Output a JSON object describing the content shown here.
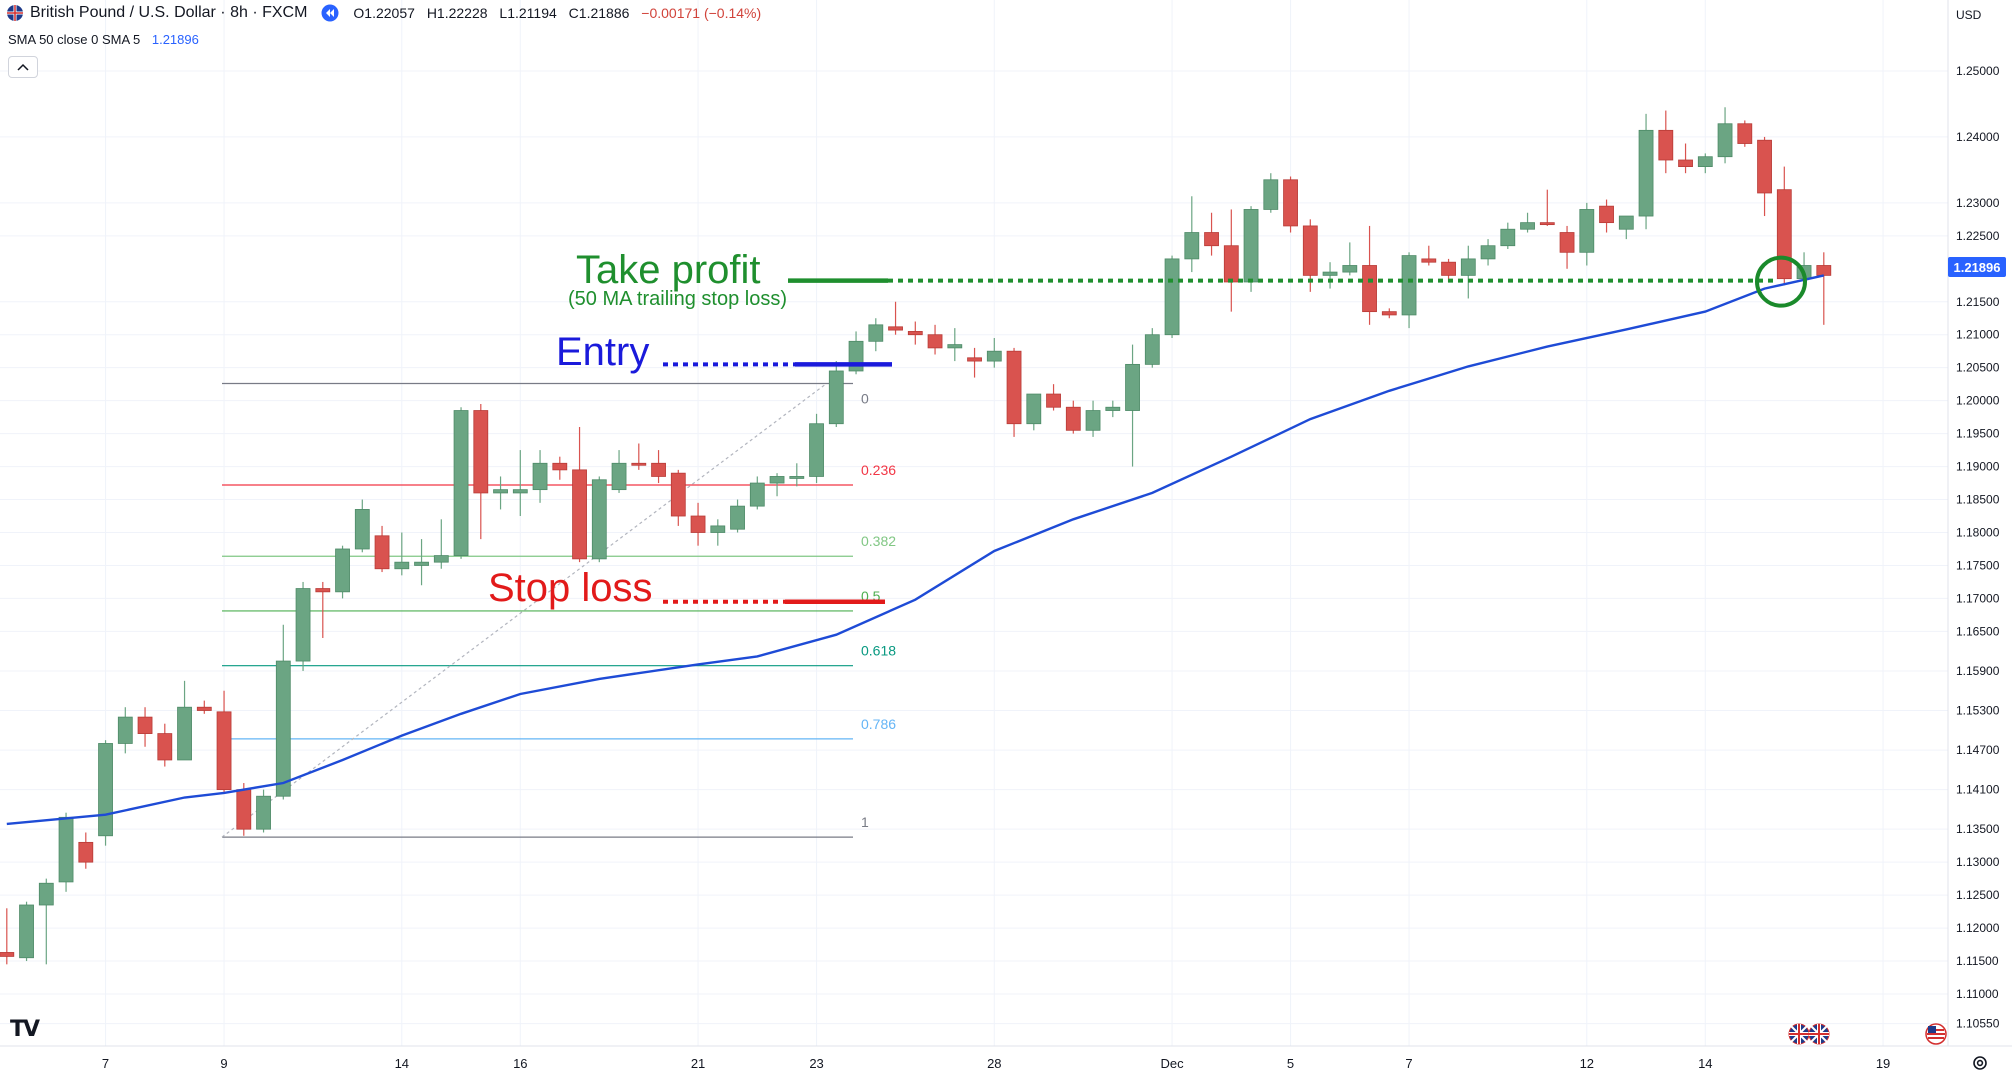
{
  "header": {
    "symbol_title": "British Pound / U.S. Dollar · 8h · FXCM",
    "open": "O1.22057",
    "high": "H1.22228",
    "low": "L1.21194",
    "close": "C1.21886",
    "change": "−0.00171 (−0.14%)",
    "indicator_label": "SMA 50 close 0 SMA 5",
    "indicator_value": "1.21896",
    "currency": "USD",
    "collapse_icon": "chevron-up-icon",
    "logo": "TV"
  },
  "annotations": {
    "take_profit": "Take profit",
    "take_profit_sub": "(50 MA trailing stop loss)",
    "entry": "Entry",
    "stop_loss": "Stop loss"
  },
  "colors": {
    "up": "#6ba583",
    "down": "#d9534f",
    "sma": "#1e4bd6",
    "take_profit": "#1f8f2e",
    "entry": "#1a1adb",
    "stop_loss": "#e21a1a",
    "price_tag": "#2962ff"
  },
  "chart_data": {
    "type": "candlestick",
    "y_axis": {
      "ticks": [
        "1.25000",
        "1.24000",
        "1.23000",
        "1.22500",
        "1.21500",
        "1.21000",
        "1.20500",
        "1.20000",
        "1.19500",
        "1.19000",
        "1.18500",
        "1.18000",
        "1.17500",
        "1.17000",
        "1.16500",
        "1.15900",
        "1.15300",
        "1.14700",
        "1.14100",
        "1.13500",
        "1.13000",
        "1.12500",
        "1.12000",
        "1.11500",
        "1.11000",
        "1.10550"
      ],
      "last_price": "1.21896"
    },
    "x_axis": {
      "ticks": [
        {
          "label": "7",
          "index": 5
        },
        {
          "label": "9",
          "index": 11
        },
        {
          "label": "14",
          "index": 20
        },
        {
          "label": "16",
          "index": 26
        },
        {
          "label": "21",
          "index": 35
        },
        {
          "label": "23",
          "index": 41
        },
        {
          "label": "28",
          "index": 50
        },
        {
          "label": "Dec",
          "index": 59
        },
        {
          "label": "5",
          "index": 65
        },
        {
          "label": "7",
          "index": 71
        },
        {
          "label": "12",
          "index": 80
        },
        {
          "label": "14",
          "index": 86
        },
        {
          "label": "19",
          "index": 95
        }
      ]
    },
    "candles": [
      {
        "o": 1.1163,
        "h": 1.123,
        "l": 1.1145,
        "c": 1.1157
      },
      {
        "o": 1.1155,
        "h": 1.124,
        "l": 1.115,
        "c": 1.1235
      },
      {
        "o": 1.1235,
        "h": 1.1275,
        "l": 1.1145,
        "c": 1.1268
      },
      {
        "o": 1.127,
        "h": 1.1375,
        "l": 1.1255,
        "c": 1.1368
      },
      {
        "o": 1.133,
        "h": 1.1345,
        "l": 1.129,
        "c": 1.13
      },
      {
        "o": 1.134,
        "h": 1.1485,
        "l": 1.1325,
        "c": 1.148
      },
      {
        "o": 1.148,
        "h": 1.1535,
        "l": 1.1465,
        "c": 1.152
      },
      {
        "o": 1.152,
        "h": 1.1535,
        "l": 1.1475,
        "c": 1.1495
      },
      {
        "o": 1.1495,
        "h": 1.151,
        "l": 1.1445,
        "c": 1.1455
      },
      {
        "o": 1.1455,
        "h": 1.1575,
        "l": 1.1455,
        "c": 1.1535
      },
      {
        "o": 1.1535,
        "h": 1.1545,
        "l": 1.1525,
        "c": 1.153
      },
      {
        "o": 1.1528,
        "h": 1.156,
        "l": 1.1405,
        "c": 1.141
      },
      {
        "o": 1.141,
        "h": 1.142,
        "l": 1.134,
        "c": 1.135
      },
      {
        "o": 1.135,
        "h": 1.141,
        "l": 1.1345,
        "c": 1.14
      },
      {
        "o": 1.14,
        "h": 1.166,
        "l": 1.1395,
        "c": 1.1605
      },
      {
        "o": 1.1605,
        "h": 1.1725,
        "l": 1.159,
        "c": 1.1715
      },
      {
        "o": 1.1715,
        "h": 1.1725,
        "l": 1.164,
        "c": 1.171
      },
      {
        "o": 1.171,
        "h": 1.178,
        "l": 1.17,
        "c": 1.1775
      },
      {
        "o": 1.1775,
        "h": 1.185,
        "l": 1.177,
        "c": 1.1835
      },
      {
        "o": 1.1795,
        "h": 1.181,
        "l": 1.174,
        "c": 1.1745
      },
      {
        "o": 1.1745,
        "h": 1.18,
        "l": 1.1735,
        "c": 1.1755
      },
      {
        "o": 1.175,
        "h": 1.179,
        "l": 1.172,
        "c": 1.1755
      },
      {
        "o": 1.1755,
        "h": 1.182,
        "l": 1.1745,
        "c": 1.1765
      },
      {
        "o": 1.1765,
        "h": 1.199,
        "l": 1.176,
        "c": 1.1985
      },
      {
        "o": 1.1985,
        "h": 1.1995,
        "l": 1.179,
        "c": 1.186
      },
      {
        "o": 1.186,
        "h": 1.1885,
        "l": 1.1835,
        "c": 1.1865
      },
      {
        "o": 1.186,
        "h": 1.1925,
        "l": 1.1825,
        "c": 1.1865
      },
      {
        "o": 1.1865,
        "h": 1.1925,
        "l": 1.1845,
        "c": 1.1905
      },
      {
        "o": 1.1905,
        "h": 1.1915,
        "l": 1.188,
        "c": 1.1895
      },
      {
        "o": 1.1895,
        "h": 1.196,
        "l": 1.1755,
        "c": 1.176
      },
      {
        "o": 1.176,
        "h": 1.1885,
        "l": 1.1755,
        "c": 1.188
      },
      {
        "o": 1.1865,
        "h": 1.1925,
        "l": 1.186,
        "c": 1.1905
      },
      {
        "o": 1.1905,
        "h": 1.1935,
        "l": 1.1895,
        "c": 1.1902
      },
      {
        "o": 1.1905,
        "h": 1.1925,
        "l": 1.1875,
        "c": 1.1885
      },
      {
        "o": 1.189,
        "h": 1.1895,
        "l": 1.181,
        "c": 1.1825
      },
      {
        "o": 1.1825,
        "h": 1.1845,
        "l": 1.178,
        "c": 1.18
      },
      {
        "o": 1.18,
        "h": 1.182,
        "l": 1.178,
        "c": 1.181
      },
      {
        "o": 1.1805,
        "h": 1.185,
        "l": 1.18,
        "c": 1.184
      },
      {
        "o": 1.184,
        "h": 1.1885,
        "l": 1.1835,
        "c": 1.1875
      },
      {
        "o": 1.1875,
        "h": 1.189,
        "l": 1.1855,
        "c": 1.1885
      },
      {
        "o": 1.1882,
        "h": 1.1905,
        "l": 1.187,
        "c": 1.1885
      },
      {
        "o": 1.1885,
        "h": 1.198,
        "l": 1.1875,
        "c": 1.1965
      },
      {
        "o": 1.1965,
        "h": 1.206,
        "l": 1.196,
        "c": 1.2045
      },
      {
        "o": 1.2045,
        "h": 1.2105,
        "l": 1.204,
        "c": 1.209
      },
      {
        "o": 1.209,
        "h": 1.2125,
        "l": 1.2075,
        "c": 1.2115
      },
      {
        "o": 1.2112,
        "h": 1.215,
        "l": 1.21,
        "c": 1.2107
      },
      {
        "o": 1.2105,
        "h": 1.212,
        "l": 1.2085,
        "c": 1.21
      },
      {
        "o": 1.21,
        "h": 1.2115,
        "l": 1.207,
        "c": 1.208
      },
      {
        "o": 1.208,
        "h": 1.211,
        "l": 1.206,
        "c": 1.2085
      },
      {
        "o": 1.2065,
        "h": 1.208,
        "l": 1.2035,
        "c": 1.206
      },
      {
        "o": 1.206,
        "h": 1.2095,
        "l": 1.205,
        "c": 1.2075
      },
      {
        "o": 1.2075,
        "h": 1.208,
        "l": 1.1945,
        "c": 1.1965
      },
      {
        "o": 1.1965,
        "h": 1.201,
        "l": 1.1955,
        "c": 1.201
      },
      {
        "o": 1.201,
        "h": 1.2025,
        "l": 1.1985,
        "c": 1.199
      },
      {
        "o": 1.199,
        "h": 1.2,
        "l": 1.195,
        "c": 1.1955
      },
      {
        "o": 1.1955,
        "h": 1.2,
        "l": 1.1945,
        "c": 1.1985
      },
      {
        "o": 1.1985,
        "h": 1.2,
        "l": 1.1975,
        "c": 1.199
      },
      {
        "o": 1.1985,
        "h": 1.2085,
        "l": 1.19,
        "c": 1.2055
      },
      {
        "o": 1.2055,
        "h": 1.211,
        "l": 1.205,
        "c": 1.21
      },
      {
        "o": 1.21,
        "h": 1.222,
        "l": 1.2095,
        "c": 1.2215
      },
      {
        "o": 1.2215,
        "h": 1.231,
        "l": 1.2195,
        "c": 1.2255
      },
      {
        "o": 1.2255,
        "h": 1.2285,
        "l": 1.222,
        "c": 1.2235
      },
      {
        "o": 1.2235,
        "h": 1.229,
        "l": 1.2135,
        "c": 1.218
      },
      {
        "o": 1.218,
        "h": 1.2295,
        "l": 1.2165,
        "c": 1.229
      },
      {
        "o": 1.229,
        "h": 1.2345,
        "l": 1.2285,
        "c": 1.2335
      },
      {
        "o": 1.2335,
        "h": 1.234,
        "l": 1.2255,
        "c": 1.2265
      },
      {
        "o": 1.2265,
        "h": 1.2275,
        "l": 1.2165,
        "c": 1.219
      },
      {
        "o": 1.219,
        "h": 1.221,
        "l": 1.217,
        "c": 1.2195
      },
      {
        "o": 1.2195,
        "h": 1.224,
        "l": 1.219,
        "c": 1.2205
      },
      {
        "o": 1.2205,
        "h": 1.2265,
        "l": 1.2115,
        "c": 1.2135
      },
      {
        "o": 1.2135,
        "h": 1.214,
        "l": 1.2125,
        "c": 1.213
      },
      {
        "o": 1.213,
        "h": 1.2225,
        "l": 1.211,
        "c": 1.222
      },
      {
        "o": 1.2215,
        "h": 1.2235,
        "l": 1.2205,
        "c": 1.221
      },
      {
        "o": 1.221,
        "h": 1.2215,
        "l": 1.218,
        "c": 1.219
      },
      {
        "o": 1.219,
        "h": 1.2235,
        "l": 1.2155,
        "c": 1.2215
      },
      {
        "o": 1.2215,
        "h": 1.2245,
        "l": 1.2205,
        "c": 1.2235
      },
      {
        "o": 1.2235,
        "h": 1.227,
        "l": 1.223,
        "c": 1.226
      },
      {
        "o": 1.226,
        "h": 1.2285,
        "l": 1.2255,
        "c": 1.227
      },
      {
        "o": 1.227,
        "h": 1.232,
        "l": 1.2265,
        "c": 1.2268
      },
      {
        "o": 1.2255,
        "h": 1.2265,
        "l": 1.22,
        "c": 1.2225
      },
      {
        "o": 1.2225,
        "h": 1.23,
        "l": 1.2205,
        "c": 1.229
      },
      {
        "o": 1.2295,
        "h": 1.2305,
        "l": 1.2255,
        "c": 1.227
      },
      {
        "o": 1.226,
        "h": 1.2275,
        "l": 1.2245,
        "c": 1.228
      },
      {
        "o": 1.228,
        "h": 1.2435,
        "l": 1.226,
        "c": 1.241
      },
      {
        "o": 1.241,
        "h": 1.244,
        "l": 1.2345,
        "c": 1.2365
      },
      {
        "o": 1.2365,
        "h": 1.239,
        "l": 1.2345,
        "c": 1.2355
      },
      {
        "o": 1.2355,
        "h": 1.2375,
        "l": 1.2345,
        "c": 1.237
      },
      {
        "o": 1.237,
        "h": 1.2445,
        "l": 1.236,
        "c": 1.242
      },
      {
        "o": 1.242,
        "h": 1.2425,
        "l": 1.2385,
        "c": 1.239
      },
      {
        "o": 1.2395,
        "h": 1.24,
        "l": 1.228,
        "c": 1.2315
      },
      {
        "o": 1.232,
        "h": 1.2355,
        "l": 1.2175,
        "c": 1.2185
      },
      {
        "o": 1.2185,
        "h": 1.2225,
        "l": 1.2175,
        "c": 1.2205
      },
      {
        "o": 1.2205,
        "h": 1.2225,
        "l": 1.2115,
        "c": 1.219
      }
    ],
    "sma50": [
      [
        0,
        1.1358
      ],
      [
        5,
        1.1372
      ],
      [
        9,
        1.1398
      ],
      [
        11,
        1.1405
      ],
      [
        14,
        1.142
      ],
      [
        17,
        1.1455
      ],
      [
        20,
        1.1492
      ],
      [
        23,
        1.1525
      ],
      [
        26,
        1.1555
      ],
      [
        30,
        1.1578
      ],
      [
        35,
        1.16
      ],
      [
        38,
        1.1612
      ],
      [
        42,
        1.1645
      ],
      [
        46,
        1.1698
      ],
      [
        50,
        1.1772
      ],
      [
        54,
        1.182
      ],
      [
        58,
        1.186
      ],
      [
        62,
        1.1915
      ],
      [
        66,
        1.1972
      ],
      [
        70,
        1.2015
      ],
      [
        74,
        1.2052
      ],
      [
        78,
        1.2082
      ],
      [
        82,
        1.2108
      ],
      [
        86,
        1.2135
      ],
      [
        89,
        1.217
      ],
      [
        92,
        1.219
      ]
    ],
    "fibonacci": {
      "levels": [
        {
          "label": "0",
          "price": 1.2026,
          "color": "#787b86"
        },
        {
          "label": "0.236",
          "price": 1.1872,
          "color": "#f23645"
        },
        {
          "label": "0.382",
          "price": 1.1764,
          "color": "#81c784"
        },
        {
          "label": "0.5",
          "price": 1.1681,
          "color": "#4caf50"
        },
        {
          "label": "0.618",
          "price": 1.1598,
          "color": "#089981"
        },
        {
          "label": "0.786",
          "price": 1.1487,
          "color": "#64b5f6"
        },
        {
          "label": "1",
          "price": 1.1338,
          "color": "#787b86"
        }
      ],
      "from_index": 11,
      "to_index": 41
    },
    "levels": {
      "take_profit": 1.2182,
      "entry": 1.2055,
      "stop_loss": 1.1695
    }
  }
}
